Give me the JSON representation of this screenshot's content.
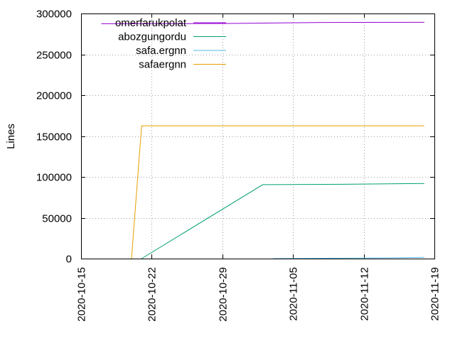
{
  "chart_data": {
    "type": "line",
    "title": "",
    "xlabel": "",
    "ylabel": "Lines",
    "x_type": "date",
    "xlim": [
      "2020-10-15",
      "2020-11-19"
    ],
    "ylim": [
      0,
      300000
    ],
    "x_ticks": [
      "2020-10-15",
      "2020-10-22",
      "2020-10-29",
      "2020-11-05",
      "2020-11-12",
      "2020-11-19"
    ],
    "y_ticks": [
      0,
      50000,
      100000,
      150000,
      200000,
      250000,
      300000
    ],
    "grid": true,
    "legend_position": "top-left",
    "series": [
      {
        "name": "omerfarukpolat",
        "color": "#9400d3",
        "points": [
          [
            "2020-10-17",
            287500
          ],
          [
            "2020-10-29",
            287700
          ],
          [
            "2020-11-08",
            289000
          ],
          [
            "2020-11-18",
            289200
          ]
        ]
      },
      {
        "name": "abozgungordu",
        "color": "#009e73",
        "points": [
          [
            "2020-10-21",
            0
          ],
          [
            "2020-11-02",
            90500
          ],
          [
            "2020-11-10",
            91000
          ],
          [
            "2020-11-18",
            92000
          ]
        ]
      },
      {
        "name": "safa.ergnn",
        "color": "#56b4e9",
        "points": [
          [
            "2020-11-03",
            0
          ],
          [
            "2020-11-10",
            500
          ],
          [
            "2020-11-15",
            1000
          ],
          [
            "2020-11-18",
            1500
          ]
        ]
      },
      {
        "name": "safaergnn",
        "color": "#e69f00",
        "points": [
          [
            "2020-10-20",
            0
          ],
          [
            "2020-10-21",
            162500
          ],
          [
            "2020-11-18",
            162500
          ]
        ]
      }
    ]
  }
}
